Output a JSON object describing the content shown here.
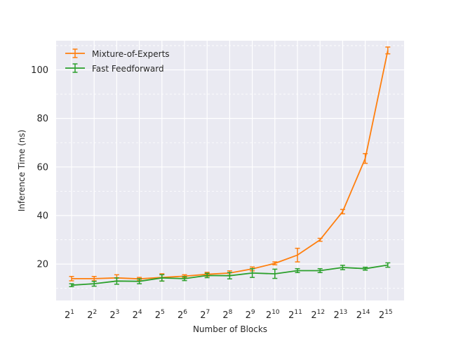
{
  "chart_data": {
    "type": "line",
    "title": "",
    "xlabel": "Number of Blocks",
    "ylabel": "Inference Time (ns)",
    "x_scale": "log2",
    "x": [
      2,
      4,
      8,
      16,
      32,
      64,
      128,
      256,
      512,
      1024,
      2048,
      4096,
      8192,
      16384,
      32768
    ],
    "x_tick_labels": [
      {
        "base": "2",
        "exp": "1"
      },
      {
        "base": "2",
        "exp": "2"
      },
      {
        "base": "2",
        "exp": "3"
      },
      {
        "base": "2",
        "exp": "4"
      },
      {
        "base": "2",
        "exp": "5"
      },
      {
        "base": "2",
        "exp": "6"
      },
      {
        "base": "2",
        "exp": "7"
      },
      {
        "base": "2",
        "exp": "8"
      },
      {
        "base": "2",
        "exp": "9"
      },
      {
        "base": "2",
        "exp": "10"
      },
      {
        "base": "2",
        "exp": "11"
      },
      {
        "base": "2",
        "exp": "12"
      },
      {
        "base": "2",
        "exp": "13"
      },
      {
        "base": "2",
        "exp": "14"
      },
      {
        "base": "2",
        "exp": "15"
      }
    ],
    "y_ticks": [
      20,
      40,
      60,
      80,
      100
    ],
    "y_minor_ticks": [
      10,
      30,
      50,
      70,
      90,
      110
    ],
    "ylim": [
      5,
      112
    ],
    "grid": true,
    "legend_position": "top-left",
    "series": [
      {
        "name": "Mixture-of-Experts",
        "color": "#ff7f0e",
        "values": [
          14.0,
          14.0,
          14.3,
          13.9,
          14.5,
          15.0,
          15.8,
          16.3,
          18.0,
          20.3,
          23.7,
          30.0,
          41.6,
          63.5,
          108.0
        ],
        "errors": [
          0.9,
          0.9,
          1.3,
          0.6,
          1.5,
          0.6,
          0.8,
          0.9,
          0.8,
          0.6,
          2.8,
          0.6,
          0.9,
          2.0,
          1.4
        ]
      },
      {
        "name": "Fast Feedforward",
        "color": "#2ca02c",
        "values": [
          11.3,
          11.9,
          13.0,
          12.9,
          14.3,
          14.0,
          15.3,
          15.2,
          16.3,
          16.0,
          17.3,
          17.3,
          18.6,
          18.1,
          19.6
        ],
        "errors": [
          0.6,
          1.0,
          1.3,
          1.0,
          1.3,
          0.8,
          0.9,
          1.3,
          1.8,
          1.9,
          0.8,
          0.8,
          0.9,
          0.6,
          0.9
        ]
      }
    ]
  }
}
